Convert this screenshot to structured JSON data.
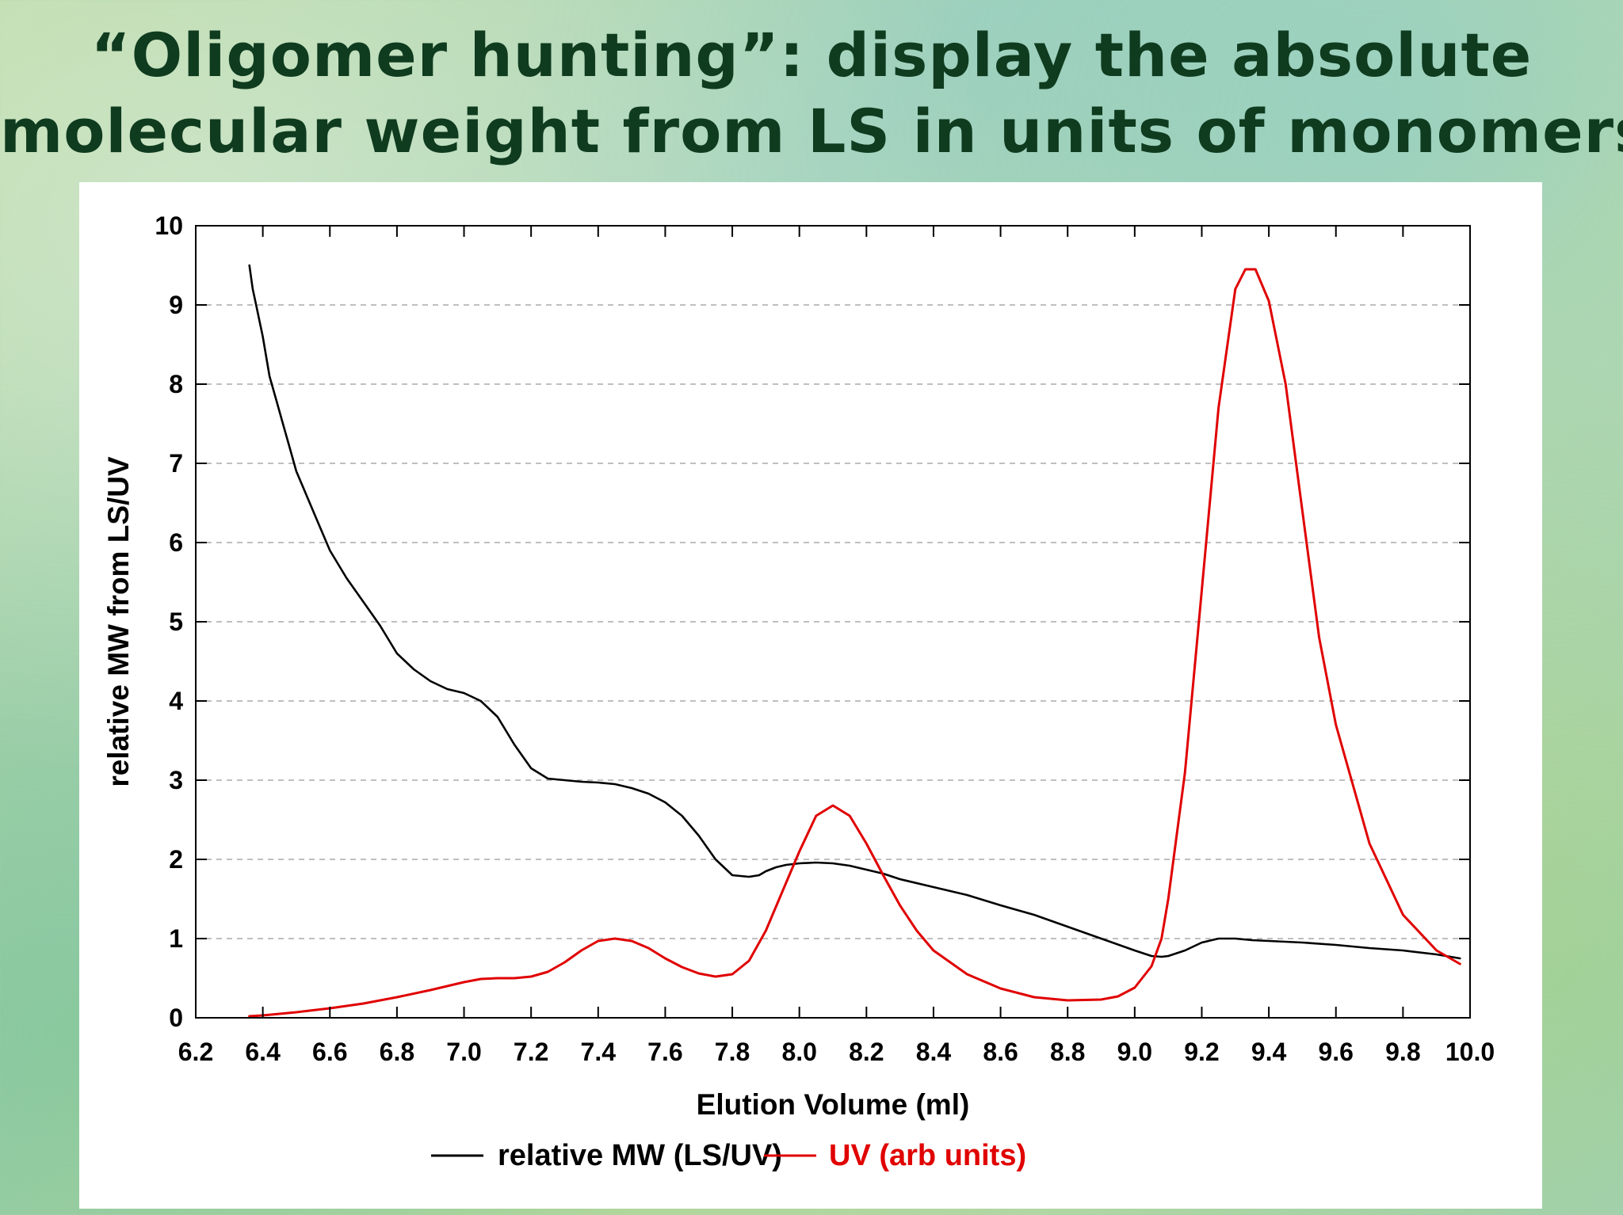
{
  "slide": {
    "title_line1": "“Oligomer hunting”: display the absolute",
    "title_line2": "molecular weight from LS in units of monomers"
  },
  "chart_data": {
    "type": "line",
    "xlabel": "Elution Volume (ml)",
    "ylabel": "relative MW from LS/UV",
    "xlim": [
      6.2,
      10.0
    ],
    "ylim": [
      0,
      10
    ],
    "xticks": [
      "6.2",
      "6.4",
      "6.6",
      "6.8",
      "7.0",
      "7.2",
      "7.4",
      "7.6",
      "7.8",
      "8.0",
      "8.2",
      "8.4",
      "8.6",
      "8.8",
      "9.0",
      "9.2",
      "9.4",
      "9.6",
      "9.8",
      "10.0"
    ],
    "yticks": [
      "0",
      "1",
      "2",
      "3",
      "4",
      "5",
      "6",
      "7",
      "8",
      "9",
      "10"
    ],
    "grid": "horizontal dashed",
    "legend_position": "bottom",
    "series": [
      {
        "name": "relative MW (LS/UV)",
        "color": "#000000",
        "x": [
          6.36,
          6.37,
          6.38,
          6.4,
          6.42,
          6.44,
          6.46,
          6.48,
          6.5,
          6.53,
          6.56,
          6.6,
          6.65,
          6.7,
          6.75,
          6.8,
          6.85,
          6.9,
          6.95,
          7.0,
          7.05,
          7.1,
          7.15,
          7.2,
          7.25,
          7.3,
          7.35,
          7.4,
          7.45,
          7.5,
          7.55,
          7.6,
          7.65,
          7.7,
          7.75,
          7.8,
          7.85,
          7.88,
          7.9,
          7.93,
          7.96,
          8.0,
          8.05,
          8.1,
          8.15,
          8.2,
          8.25,
          8.3,
          8.4,
          8.5,
          8.6,
          8.7,
          8.8,
          8.9,
          9.0,
          9.05,
          9.08,
          9.1,
          9.15,
          9.2,
          9.25,
          9.3,
          9.35,
          9.4,
          9.5,
          9.6,
          9.7,
          9.8,
          9.9,
          9.97
        ],
        "y": [
          9.5,
          9.2,
          9.0,
          8.6,
          8.1,
          7.8,
          7.5,
          7.2,
          6.9,
          6.6,
          6.3,
          5.9,
          5.55,
          5.25,
          4.95,
          4.6,
          4.4,
          4.25,
          4.15,
          4.1,
          4.0,
          3.8,
          3.45,
          3.15,
          3.02,
          3.0,
          2.98,
          2.97,
          2.95,
          2.9,
          2.83,
          2.72,
          2.55,
          2.3,
          2.0,
          1.8,
          1.78,
          1.8,
          1.85,
          1.9,
          1.93,
          1.95,
          1.96,
          1.95,
          1.92,
          1.87,
          1.82,
          1.75,
          1.65,
          1.55,
          1.42,
          1.3,
          1.15,
          1.0,
          0.85,
          0.78,
          0.77,
          0.78,
          0.85,
          0.95,
          1.0,
          1.0,
          0.98,
          0.97,
          0.95,
          0.92,
          0.88,
          0.85,
          0.8,
          0.75
        ]
      },
      {
        "name": "UV (arb units)",
        "color": "#e00000",
        "x": [
          6.36,
          6.4,
          6.5,
          6.6,
          6.7,
          6.8,
          6.9,
          7.0,
          7.05,
          7.1,
          7.15,
          7.2,
          7.25,
          7.3,
          7.35,
          7.4,
          7.45,
          7.5,
          7.55,
          7.6,
          7.65,
          7.7,
          7.75,
          7.8,
          7.85,
          7.9,
          7.95,
          8.0,
          8.05,
          8.1,
          8.15,
          8.2,
          8.25,
          8.3,
          8.35,
          8.4,
          8.5,
          8.6,
          8.7,
          8.8,
          8.9,
          8.95,
          9.0,
          9.05,
          9.08,
          9.1,
          9.15,
          9.2,
          9.25,
          9.3,
          9.33,
          9.36,
          9.4,
          9.45,
          9.5,
          9.55,
          9.6,
          9.7,
          9.8,
          9.9,
          9.97
        ],
        "y": [
          0.02,
          0.03,
          0.07,
          0.12,
          0.18,
          0.26,
          0.35,
          0.45,
          0.49,
          0.5,
          0.5,
          0.52,
          0.58,
          0.7,
          0.85,
          0.97,
          1.0,
          0.97,
          0.88,
          0.75,
          0.64,
          0.56,
          0.52,
          0.55,
          0.72,
          1.1,
          1.6,
          2.1,
          2.55,
          2.68,
          2.55,
          2.2,
          1.8,
          1.42,
          1.1,
          0.85,
          0.55,
          0.37,
          0.26,
          0.22,
          0.23,
          0.27,
          0.38,
          0.65,
          1.0,
          1.5,
          3.1,
          5.4,
          7.7,
          9.2,
          9.45,
          9.45,
          9.05,
          8.0,
          6.4,
          4.8,
          3.7,
          2.2,
          1.3,
          0.85,
          0.68
        ]
      }
    ]
  }
}
